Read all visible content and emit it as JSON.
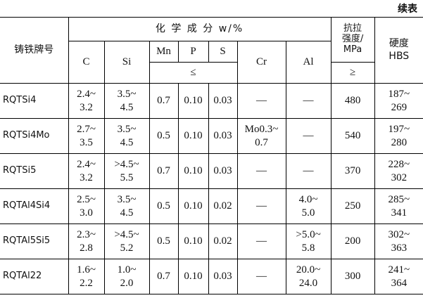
{
  "header": {
    "continued": "续表"
  },
  "table": {
    "head": {
      "grade": "铸铁牌号",
      "composition": "化 学 成 分 w/%",
      "C": "C",
      "Si": "Si",
      "Mn": "Mn",
      "P": "P",
      "S": "S",
      "le": "≤",
      "Cr": "Cr",
      "Al": "Al",
      "tensile": "抗拉\n强度/\nMPa",
      "ge": "≥",
      "hardness": "硬度\nHBS"
    },
    "rows": [
      [
        "RQTSi4",
        "2.4~\n3.2",
        "3.5~\n4.5",
        "0.7",
        "0.10",
        "0.03",
        "—",
        "—",
        "480",
        "187~\n269"
      ],
      [
        "RQTSi4Mo",
        "2.7~\n3.5",
        "3.5~\n4.5",
        "0.5",
        "0.10",
        "0.03",
        "Mo0.3~\n0.7",
        "—",
        "540",
        "197~\n280"
      ],
      [
        "RQTSi5",
        "2.4~\n3.2",
        ">4.5~\n5.5",
        "0.7",
        "0.10",
        "0.03",
        "—",
        "—",
        "370",
        "228~\n302"
      ],
      [
        "RQTAl4Si4",
        "2.5~\n3.0",
        "3.5~\n4.5",
        "0.5",
        "0.10",
        "0.02",
        "—",
        "4.0~\n5.0",
        "250",
        "285~\n341"
      ],
      [
        "RQTAl5Si5",
        "2.3~\n2.8",
        ">4.5~\n5.2",
        "0.5",
        "0.10",
        "0.02",
        "—",
        ">5.0~\n5.8",
        "200",
        "302~\n363"
      ],
      [
        "RQTAl22",
        "1.6~\n2.2",
        "1.0~\n2.0",
        "0.7",
        "0.10",
        "0.03",
        "—",
        "20.0~\n24.0",
        "300",
        "241~\n364"
      ]
    ]
  }
}
